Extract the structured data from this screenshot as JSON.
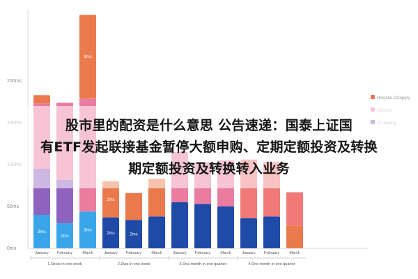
{
  "headline": {
    "lines": [
      "股市里的配资是什么意思 公告速递：国泰上证国",
      "有ETF发起联接基金暂停大额申购、定期定额投资及转换",
      "期定额投资及转换转入业务"
    ]
  },
  "chart_data": {
    "type": "bar",
    "stacked": true,
    "y_ticks": [
      "0ms",
      "50ms",
      "100ms",
      "150ms",
      "200ms"
    ],
    "ylim": [
      0,
      290
    ],
    "grid": false,
    "legend": {
      "placement": "right",
      "items": [
        {
          "label": "Hospital Compgry",
          "color": "#e8765a"
        },
        {
          "label": "Cfolonm",
          "color": "#e97ea2"
        },
        {
          "label": "Xn Seping",
          "color": "#8e63c0"
        }
      ]
    },
    "segment_colors": {
      "base": "#3aa6ea",
      "navy": "#1f4aa8",
      "purple": "#8e63c0",
      "pink": "#ea7c9f",
      "orange": "#ea7a4c",
      "red": "#f07a78"
    },
    "x_labels": [
      "January",
      "February",
      "March",
      "January",
      "February",
      "March",
      "January",
      "February",
      "March",
      "January",
      "February",
      "March"
    ],
    "groups": [
      "1.Ozsle in one week",
      "2.Dwa in one weok",
      "3.Ona month in one quarter",
      "4.One month in one quarter"
    ],
    "bars": [
      {
        "category": "January",
        "segments": [
          {
            "color": "base",
            "value": 40,
            "label": "3ms"
          },
          {
            "color": "purple",
            "value": 55,
            "label": ""
          },
          {
            "color": "pink",
            "value": 78,
            "label": ""
          },
          {
            "color": "orange",
            "value": 10,
            "label": ""
          }
        ]
      },
      {
        "category": "February",
        "segments": [
          {
            "color": "base",
            "value": 30,
            "label": "2ms"
          },
          {
            "color": "purple",
            "value": 52,
            "label": ""
          },
          {
            "color": "pink",
            "value": 92,
            "label": ""
          }
        ]
      },
      {
        "category": "March",
        "segments": [
          {
            "color": "base",
            "value": 44,
            "label": "3ms"
          },
          {
            "color": "pink",
            "value": 135,
            "label": ""
          },
          {
            "color": "orange",
            "value": 100,
            "label": "9ms"
          }
        ]
      },
      {
        "category": "January",
        "segments": [
          {
            "color": "navy",
            "value": 37,
            "label": "2ms"
          },
          {
            "color": "orange",
            "value": 43,
            "label": "2ms"
          }
        ]
      },
      {
        "category": "February",
        "segments": [
          {
            "color": "navy",
            "value": 34,
            "label": "2ms"
          },
          {
            "color": "orange",
            "value": 32,
            "label": ""
          }
        ]
      },
      {
        "category": "March",
        "segments": [
          {
            "color": "navy",
            "value": 38,
            "label": ""
          },
          {
            "color": "orange",
            "value": 45,
            "label": ""
          }
        ]
      },
      {
        "category": "January",
        "segments": [
          {
            "color": "navy",
            "value": 55,
            "label": ""
          },
          {
            "color": "pink",
            "value": 60,
            "label": ""
          }
        ]
      },
      {
        "category": "February",
        "segments": [
          {
            "color": "navy",
            "value": 53,
            "label": ""
          },
          {
            "color": "pink",
            "value": 50,
            "label": ""
          }
        ]
      },
      {
        "category": "March",
        "segments": [
          {
            "color": "navy",
            "value": 50,
            "label": ""
          },
          {
            "color": "pink",
            "value": 55,
            "label": ""
          }
        ]
      },
      {
        "category": "January",
        "segments": [
          {
            "color": "navy",
            "value": 36,
            "label": ""
          },
          {
            "color": "red",
            "value": 70,
            "label": ""
          }
        ]
      },
      {
        "category": "February",
        "segments": [
          {
            "color": "navy",
            "value": 38,
            "label": ""
          },
          {
            "color": "red",
            "value": 65,
            "label": ""
          }
        ]
      },
      {
        "category": "March",
        "segments": [
          {
            "color": "orange",
            "value": 27,
            "label": ""
          },
          {
            "color": "red",
            "value": 40,
            "label": ""
          }
        ]
      }
    ]
  }
}
